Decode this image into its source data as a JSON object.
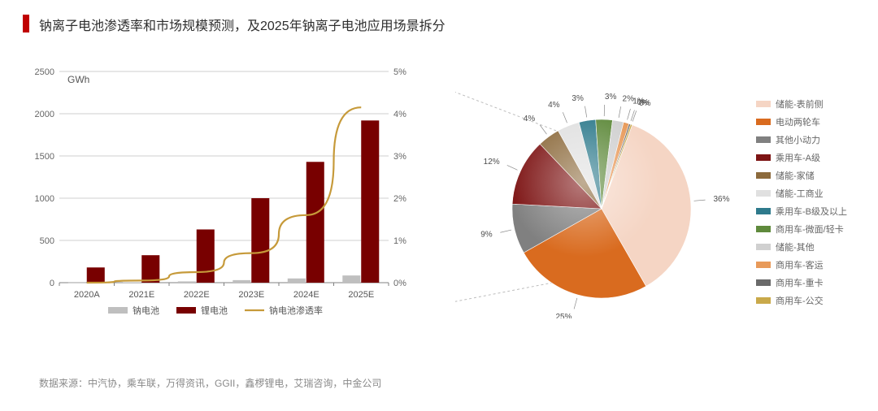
{
  "title": "钠离子电池渗透率和市场规模预测，及2025年钠离子电池应用场景拆分",
  "source": "数据来源：中汽协，乘车联，万得资讯，GGII，鑫椤锂电，艾瑞咨询，中金公司",
  "colors": {
    "title_accent": "#c00000",
    "text": "#2e2e2e",
    "source_text": "#8a8a8a",
    "axis": "#808080",
    "grid": "#bfbfbf",
    "background": "#ffffff"
  },
  "bar_chart": {
    "type": "bar+line_dual_axis",
    "unit_label": "GWh",
    "categories": [
      "2020A",
      "2021E",
      "2022E",
      "2023E",
      "2024E",
      "2025E"
    ],
    "series": [
      {
        "name": "钠电池",
        "kind": "bar",
        "color": "#bfbfbf",
        "values": [
          2,
          5,
          15,
          30,
          50,
          85
        ]
      },
      {
        "name": "锂电池",
        "kind": "bar",
        "color": "#780000",
        "values": [
          180,
          325,
          630,
          1000,
          1430,
          1920
        ]
      },
      {
        "name": "钠电池渗透率",
        "kind": "line",
        "color": "#c69a3a",
        "line_width": 2.2,
        "axis": "right",
        "values_pct": [
          0.0,
          0.05,
          0.25,
          0.7,
          1.6,
          4.15
        ]
      }
    ],
    "y_left": {
      "min": 0,
      "max": 2500,
      "step": 500
    },
    "y_right": {
      "min": 0,
      "max": 5,
      "step": 1,
      "suffix": "%"
    },
    "legend_labels": {
      "na": "钠电池",
      "li": "锂电池",
      "pen": "钠电池渗透率"
    },
    "label_fontsize": 11,
    "axis_fontsize": 11
  },
  "pie_chart": {
    "type": "pie",
    "bevel_highlight": true,
    "label_fontsize": 10,
    "label_color": "#4d4d4d",
    "slices": [
      {
        "name": "储能-表前侧",
        "pct": 36,
        "color": "#f5d5c4",
        "show_label": true
      },
      {
        "name": "电动两轮车",
        "pct": 25,
        "color": "#d96b1f",
        "show_label": true
      },
      {
        "name": "其他小动力",
        "pct": 9,
        "color": "#808080",
        "show_label": true
      },
      {
        "name": "乘用车-A级",
        "pct": 12,
        "color": "#7d1414",
        "show_label": true
      },
      {
        "name": "储能-家储",
        "pct": 4,
        "color": "#8c6a3c",
        "show_label": true
      },
      {
        "name": "储能-工商业",
        "pct": 4,
        "color": "#e0e0e0",
        "show_label": true
      },
      {
        "name": "乘用车-B级及以上",
        "pct": 3,
        "color": "#2e7a8c",
        "show_label": true
      },
      {
        "name": "商用车-微面/轻卡",
        "pct": 3,
        "color": "#5f8a3c",
        "show_label": true
      },
      {
        "name": "储能-其他",
        "pct": 2,
        "color": "#d0d0d0",
        "show_label": true
      },
      {
        "name": "商用车-客运",
        "pct": 1,
        "color": "#e89a5a",
        "show_label": true
      },
      {
        "name": "商用车-重卡",
        "pct": 0,
        "color": "#6a6a6a",
        "show_label": true
      },
      {
        "name": "商用车-公交",
        "pct": 0,
        "color": "#c9a94a",
        "show_label": true
      }
    ]
  }
}
